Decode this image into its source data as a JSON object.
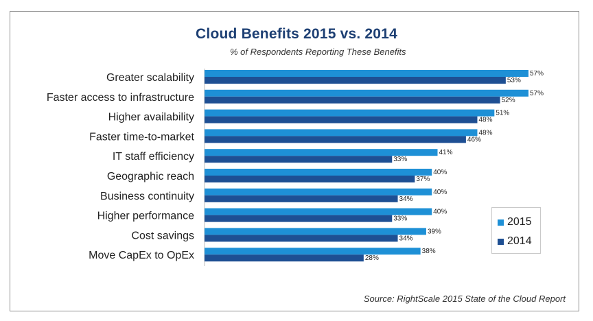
{
  "chart_data": {
    "type": "bar",
    "orientation": "horizontal",
    "title": "Cloud Benefits 2015 vs. 2014",
    "subtitle": "% of Respondents Reporting These Benefits",
    "source": "Source: RightScale 2015 State of the Cloud Report",
    "categories": [
      "Greater scalability",
      "Faster access to infrastructure",
      "Higher availability",
      "Faster time-to-market",
      "IT staff efficiency",
      "Geographic reach",
      "Business continuity",
      "Higher performance",
      "Cost savings",
      "Move CapEx to OpEx"
    ],
    "series": [
      {
        "name": "2015",
        "color": "#1e90d6",
        "values": [
          57,
          57,
          51,
          48,
          41,
          40,
          40,
          40,
          39,
          38
        ],
        "labels": [
          "57%",
          "57%",
          "51%",
          "48%",
          "41%",
          "40%",
          "40%",
          "40%",
          "39%",
          "38%"
        ]
      },
      {
        "name": "2014",
        "color": "#1e4f93",
        "values": [
          53,
          52,
          48,
          46,
          33,
          37,
          34,
          33,
          34,
          28
        ],
        "labels": [
          "53%",
          "52%",
          "48%",
          "46%",
          "33%",
          "37%",
          "34%",
          "33%",
          "34%",
          "28%"
        ]
      }
    ],
    "xlim": [
      0,
      57
    ],
    "legend": "bottom-right",
    "grid": false
  }
}
